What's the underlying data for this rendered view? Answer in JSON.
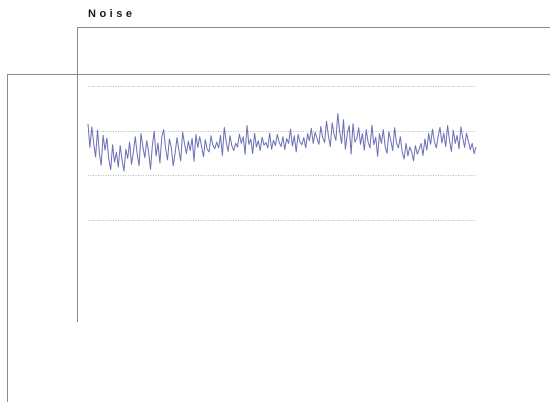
{
  "window": {
    "title": "Noise"
  },
  "colors": {
    "frame": "#8a8a8a",
    "gridline": "#b8b8b8",
    "trace": "#6b6fb3",
    "title": "#1a1a1a"
  },
  "chart_data": {
    "type": "line",
    "title": "Noise",
    "xlabel": "",
    "ylabel": "",
    "grid": true,
    "xlim": [
      0,
      199
    ],
    "ylim": [
      0,
      4
    ],
    "gridlines_y": [
      1,
      2,
      3,
      4
    ],
    "series": [
      {
        "values": [
          3.15,
          2.62,
          3.08,
          2.71,
          2.41,
          3.01,
          2.48,
          2.22,
          2.89,
          2.56,
          2.83,
          2.35,
          2.12,
          2.68,
          2.29,
          2.51,
          2.18,
          2.66,
          2.33,
          2.09,
          2.58,
          2.37,
          2.74,
          2.24,
          2.52,
          2.86,
          2.46,
          2.21,
          2.93,
          2.63,
          2.39,
          2.77,
          2.52,
          2.13,
          2.67,
          2.98,
          2.43,
          2.72,
          2.27,
          2.86,
          3.02,
          2.59,
          2.34,
          2.81,
          2.62,
          2.21,
          2.48,
          2.84,
          2.57,
          2.32,
          2.96,
          2.71,
          2.48,
          2.76,
          2.55,
          2.82,
          2.31,
          2.91,
          2.62,
          2.86,
          2.64,
          2.41,
          2.79,
          2.58,
          2.52,
          2.88,
          2.67,
          2.59,
          2.74,
          2.61,
          2.89,
          2.44,
          3.07,
          2.74,
          2.53,
          2.88,
          2.66,
          2.55,
          2.71,
          2.63,
          2.92,
          2.71,
          2.86,
          2.47,
          3.11,
          2.69,
          2.81,
          2.48,
          2.94,
          2.63,
          2.77,
          2.55,
          2.85,
          2.67,
          2.73,
          2.61,
          2.94,
          2.58,
          2.78,
          2.66,
          2.91,
          2.73,
          2.64,
          2.86,
          2.57,
          2.82,
          2.71,
          3.03,
          2.65,
          2.88,
          2.52,
          2.91,
          2.74,
          2.68,
          2.84,
          2.61,
          2.93,
          2.77,
          3.05,
          2.71,
          2.96,
          2.83,
          2.69,
          3.09,
          2.84,
          2.73,
          3.21,
          2.88,
          2.64,
          3.17,
          2.92,
          2.78,
          3.38,
          2.97,
          2.71,
          3.24,
          2.58,
          2.93,
          3.11,
          2.47,
          3.15,
          2.74,
          2.82,
          3.06,
          2.69,
          2.93,
          2.56,
          3.02,
          2.74,
          2.61,
          3.12,
          2.68,
          2.85,
          2.42,
          2.93,
          2.71,
          3.02,
          2.63,
          2.49,
          2.97,
          2.77,
          2.55,
          3.06,
          2.72,
          2.61,
          2.86,
          2.51,
          2.36,
          2.71,
          2.43,
          2.63,
          2.53,
          2.32,
          2.66,
          2.47,
          2.58,
          2.71,
          2.44,
          2.81,
          2.56,
          2.93,
          2.69,
          3.03,
          2.75,
          2.61,
          2.86,
          3.07,
          2.72,
          2.94,
          2.64,
          3.11,
          2.78,
          2.53,
          3.01,
          2.71,
          2.89,
          2.59,
          3.08,
          2.83,
          2.62,
          2.94,
          2.76,
          2.57,
          2.71,
          2.48,
          2.63
        ]
      }
    ]
  }
}
